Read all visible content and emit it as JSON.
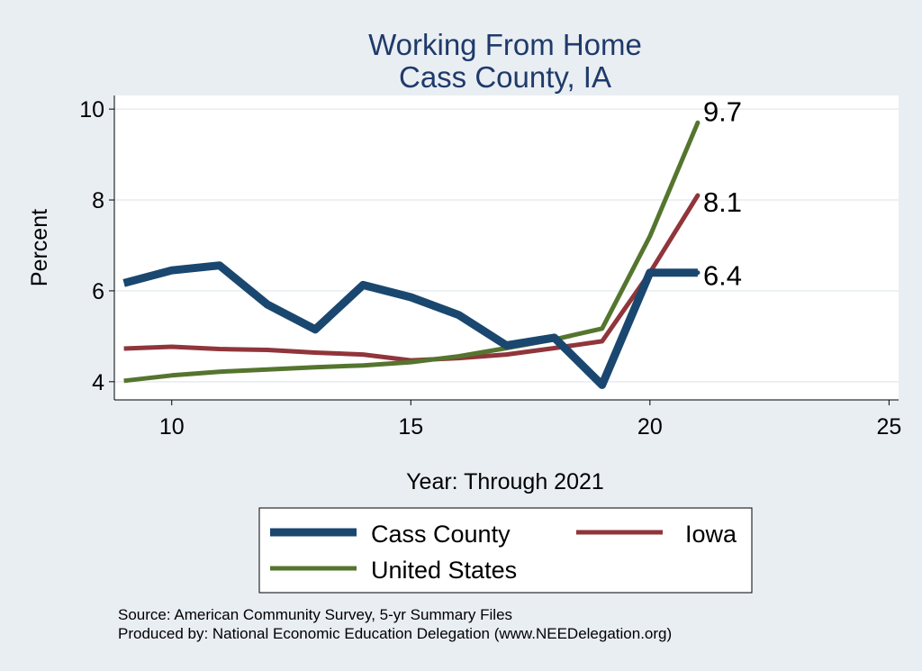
{
  "chart_data": {
    "type": "line",
    "title": [
      "Working From Home",
      "Cass County, IA"
    ],
    "xlabel": "Year: Through 2021",
    "ylabel": "Percent",
    "xlim": [
      8.8,
      25.2
    ],
    "ylim": [
      3.6,
      10.3
    ],
    "xticks": [
      10,
      15,
      20,
      25
    ],
    "yticks": [
      4,
      6,
      8,
      10
    ],
    "grid": true,
    "legend": "bottom",
    "x": [
      9,
      10,
      11,
      12,
      13,
      14,
      15,
      16,
      17,
      18,
      19,
      20,
      21
    ],
    "series": [
      {
        "name": "Cass County",
        "color": "#1a476f",
        "values": [
          6.17,
          6.45,
          6.56,
          5.7,
          5.15,
          6.13,
          5.86,
          5.47,
          4.8,
          4.97,
          3.93,
          6.4,
          6.4
        ],
        "end_label": "6.4"
      },
      {
        "name": "Iowa",
        "color": "#90353b",
        "values": [
          4.73,
          4.77,
          4.72,
          4.7,
          4.64,
          4.6,
          4.47,
          4.52,
          4.6,
          4.74,
          4.89,
          6.4,
          8.1
        ],
        "end_label": "8.1"
      },
      {
        "name": "United States",
        "color": "#55752f",
        "values": [
          4.02,
          4.14,
          4.22,
          4.27,
          4.32,
          4.36,
          4.43,
          4.56,
          4.74,
          4.93,
          5.17,
          7.2,
          9.7
        ],
        "end_label": "9.7"
      }
    ]
  },
  "notes": [
    "Source: American Community Survey, 5-yr Summary Files",
    "Produced by: National Economic Education Delegation (www.NEEDelegation.org)"
  ]
}
